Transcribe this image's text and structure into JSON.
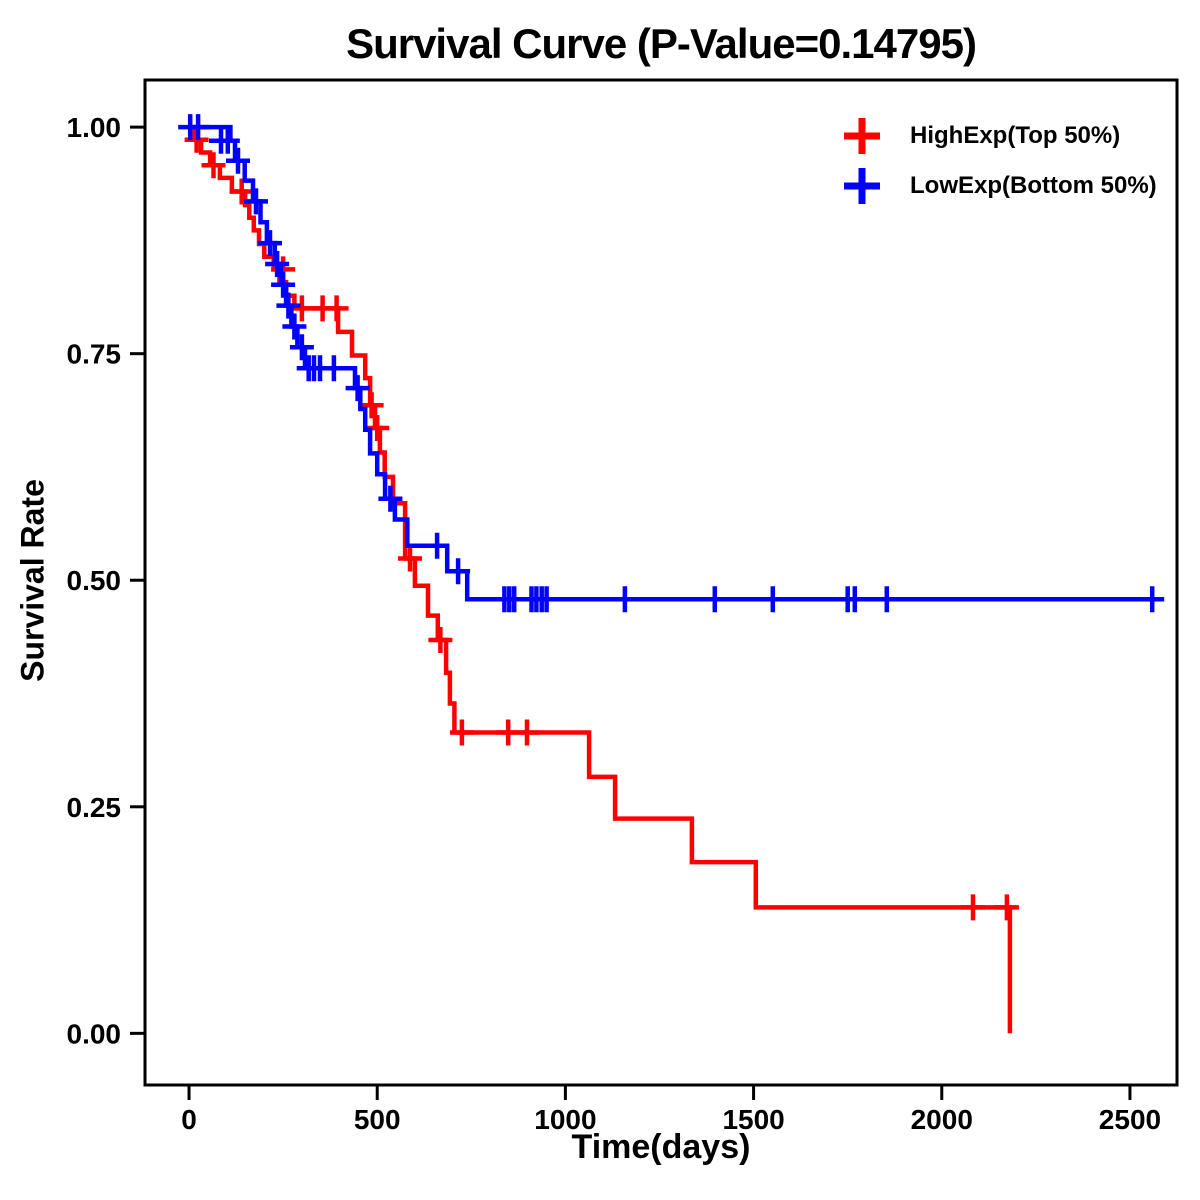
{
  "chart_data": {
    "type": "line",
    "subtype": "kaplan-meier-step-curve",
    "title": "Survival Curve (P-Value=0.14795)",
    "p_value_text": "0.14795",
    "xlabel": "Time(days)",
    "ylabel": "Survival Rate",
    "grid": false,
    "background": "#FFFFFF",
    "axis_color": "#000000",
    "legend_position": "top-right-inside",
    "xlim": [
      -117,
      2625
    ],
    "ylim": [
      -0.057,
      1.052
    ],
    "x_ticks": [
      {
        "v": 0,
        "label": "0"
      },
      {
        "v": 500,
        "label": "500"
      },
      {
        "v": 1000,
        "label": "1000"
      },
      {
        "v": 1500,
        "label": "1500"
      },
      {
        "v": 2000,
        "label": "2000"
      },
      {
        "v": 2500,
        "label": "2500"
      }
    ],
    "y_ticks": [
      {
        "v": 0.0,
        "label": "0.00"
      },
      {
        "v": 0.25,
        "label": "0.25"
      },
      {
        "v": 0.5,
        "label": "0.50"
      },
      {
        "v": 0.75,
        "label": "0.75"
      },
      {
        "v": 1.0,
        "label": "1.00"
      }
    ],
    "series": [
      {
        "name": "HighExp(Top 50%)",
        "color": "#FF0000",
        "marker": "plus-censor",
        "steps": [
          [
            0,
            1.0
          ],
          [
            15,
            0.986
          ],
          [
            32,
            0.972
          ],
          [
            56,
            0.958
          ],
          [
            82,
            0.944
          ],
          [
            114,
            0.929
          ],
          [
            149,
            0.914
          ],
          [
            160,
            0.9
          ],
          [
            172,
            0.886
          ],
          [
            186,
            0.871
          ],
          [
            200,
            0.857
          ],
          [
            225,
            0.843
          ],
          [
            240,
            0.829
          ],
          [
            258,
            0.814
          ],
          [
            280,
            0.8
          ],
          [
            396,
            0.774
          ],
          [
            433,
            0.748
          ],
          [
            468,
            0.723
          ],
          [
            481,
            0.693
          ],
          [
            494,
            0.668
          ],
          [
            507,
            0.641
          ],
          [
            520,
            0.614
          ],
          [
            542,
            0.585
          ],
          [
            574,
            0.524
          ],
          [
            600,
            0.494
          ],
          [
            635,
            0.461
          ],
          [
            661,
            0.434
          ],
          [
            683,
            0.398
          ],
          [
            693,
            0.364
          ],
          [
            705,
            0.332
          ],
          [
            1063,
            0.283
          ],
          [
            1132,
            0.237
          ],
          [
            1336,
            0.189
          ],
          [
            1506,
            0.139
          ],
          [
            2181,
            0.0
          ]
        ],
        "censors": [
          [
            20,
            0.986
          ],
          [
            65,
            0.958
          ],
          [
            140,
            0.929
          ],
          [
            250,
            0.843
          ],
          [
            300,
            0.8
          ],
          [
            355,
            0.8
          ],
          [
            392,
            0.8
          ],
          [
            485,
            0.693
          ],
          [
            500,
            0.668
          ],
          [
            587,
            0.524
          ],
          [
            668,
            0.434
          ],
          [
            725,
            0.332
          ],
          [
            848,
            0.332
          ],
          [
            898,
            0.332
          ],
          [
            2083,
            0.139
          ],
          [
            2173,
            0.139
          ]
        ]
      },
      {
        "name": "LowExp(Bottom 50%)",
        "color": "#0000FF",
        "marker": "plus-censor",
        "steps": [
          [
            0,
            1.0
          ],
          [
            110,
            0.985
          ],
          [
            122,
            0.963
          ],
          [
            148,
            0.941
          ],
          [
            170,
            0.918
          ],
          [
            190,
            0.895
          ],
          [
            207,
            0.872
          ],
          [
            228,
            0.849
          ],
          [
            244,
            0.826
          ],
          [
            258,
            0.803
          ],
          [
            272,
            0.78
          ],
          [
            288,
            0.757
          ],
          [
            308,
            0.734
          ],
          [
            441,
            0.712
          ],
          [
            455,
            0.689
          ],
          [
            468,
            0.666
          ],
          [
            481,
            0.64
          ],
          [
            500,
            0.617
          ],
          [
            521,
            0.59
          ],
          [
            547,
            0.567
          ],
          [
            580,
            0.538
          ],
          [
            686,
            0.51
          ],
          [
            739,
            0.479
          ],
          [
            2588,
            0.479
          ]
        ],
        "censors": [
          [
            3,
            1.0
          ],
          [
            24,
            1.0
          ],
          [
            85,
            0.985
          ],
          [
            103,
            0.985
          ],
          [
            130,
            0.963
          ],
          [
            178,
            0.918
          ],
          [
            215,
            0.872
          ],
          [
            234,
            0.849
          ],
          [
            250,
            0.826
          ],
          [
            264,
            0.803
          ],
          [
            280,
            0.78
          ],
          [
            300,
            0.757
          ],
          [
            318,
            0.734
          ],
          [
            332,
            0.734
          ],
          [
            348,
            0.734
          ],
          [
            385,
            0.734
          ],
          [
            448,
            0.712
          ],
          [
            535,
            0.59
          ],
          [
            659,
            0.538
          ],
          [
            715,
            0.51
          ],
          [
            838,
            0.479
          ],
          [
            851,
            0.479
          ],
          [
            864,
            0.479
          ],
          [
            910,
            0.479
          ],
          [
            923,
            0.479
          ],
          [
            937,
            0.479
          ],
          [
            950,
            0.479
          ],
          [
            1158,
            0.479
          ],
          [
            1397,
            0.479
          ],
          [
            1551,
            0.479
          ],
          [
            1750,
            0.479
          ],
          [
            1769,
            0.479
          ],
          [
            1854,
            0.479
          ],
          [
            2559,
            0.479
          ]
        ]
      }
    ]
  }
}
